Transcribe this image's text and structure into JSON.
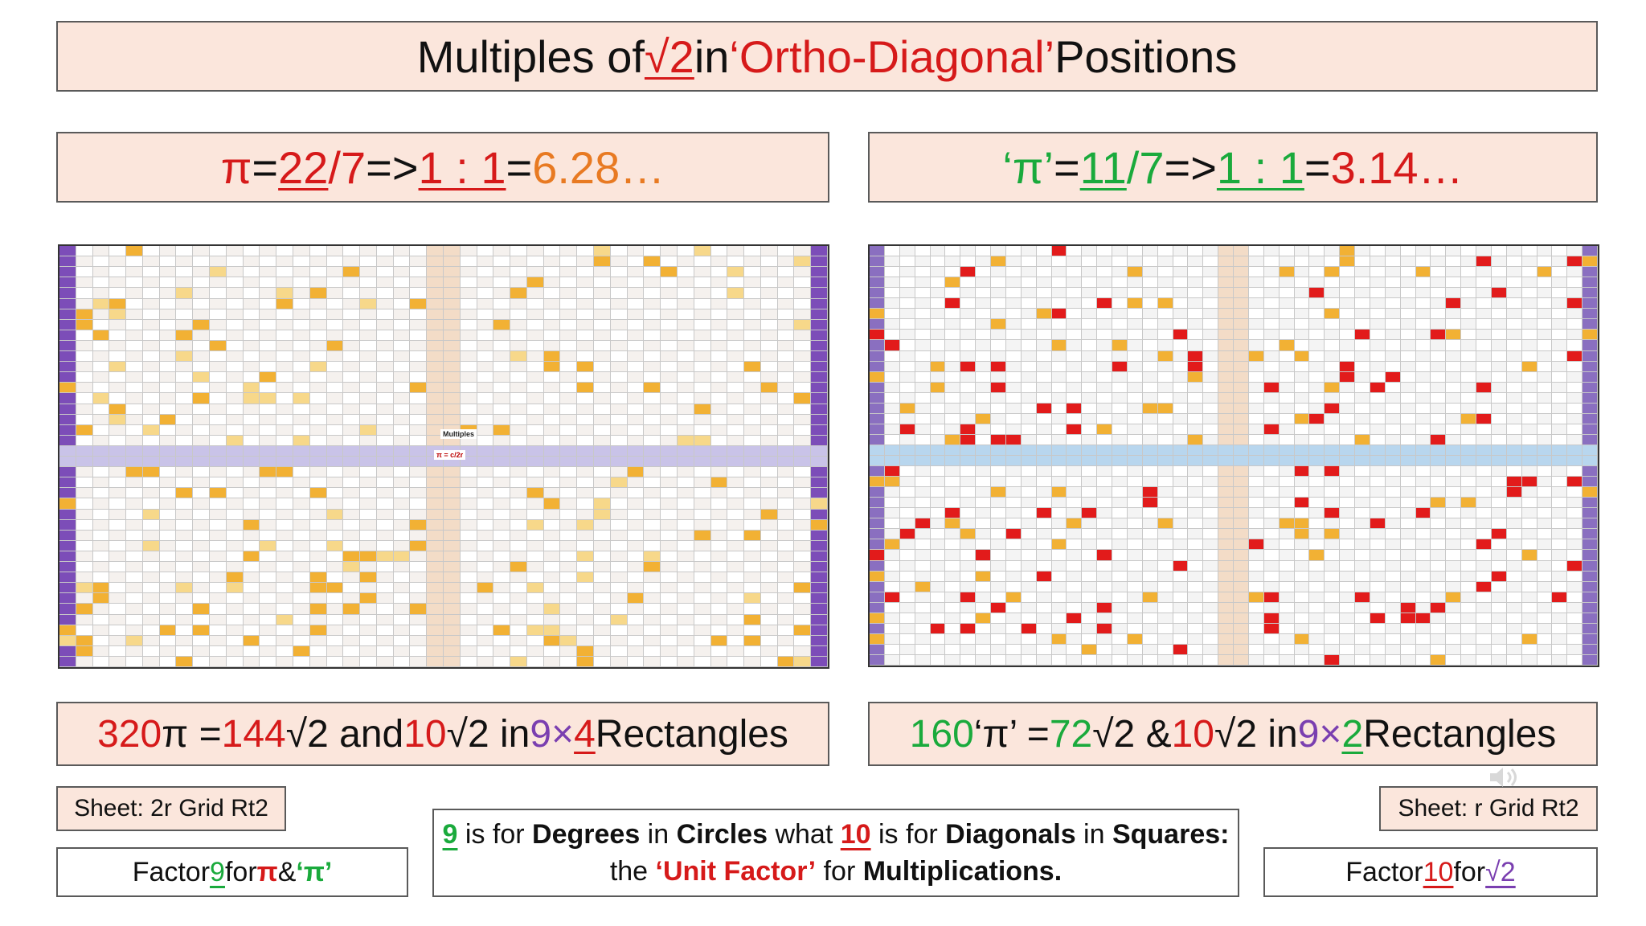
{
  "title": {
    "pre": "Multiples of ",
    "root": "√2",
    "mid": " in ",
    "ortho": "‘Ortho-Diagonal’",
    "post": " Positions"
  },
  "left_eq": {
    "pi": "π",
    "eq1": " = ",
    "num": "22",
    "slash": " / ",
    "den": "7",
    "arrow": " => ",
    "ratio": "1 : 1",
    "eq2": " = ",
    "value": "6.28…"
  },
  "right_eq": {
    "pi": "‘π’",
    "eq1": " = ",
    "num": "11",
    "slash": " / ",
    "den": "7",
    "arrow": " => ",
    "ratio": "1 : 1",
    "eq2": " = ",
    "value": "3.14…"
  },
  "left_rect": {
    "a": "320",
    "b": " π = ",
    "c": "144",
    "d": " √2 and ",
    "e": "10",
    "f": " √2 in ",
    "g": "9",
    "h": " × ",
    "i": "4",
    "j": " Rectangles"
  },
  "right_rect": {
    "a": "160",
    "b": " ‘π’ = ",
    "c": "72",
    "d": " √2 & ",
    "e": "10",
    "f": " √2 in ",
    "g": "9",
    "h": " × ",
    "i": "2",
    "j": " Rectangles"
  },
  "sheet_left": "Sheet: 2r Grid Rt2",
  "sheet_right": "Sheet: r Grid Rt2",
  "factor_left": {
    "pre": "Factor ",
    "num": "9",
    "mid": " for ",
    "pi": "π",
    "amp": " & ",
    "pi2": "‘π’"
  },
  "factor_right": {
    "pre": "Factor ",
    "num": "10",
    "mid": " for ",
    "root": "√2"
  },
  "unit_box": {
    "line1": {
      "n9": "9",
      "t1": " is for ",
      "deg": "Degrees",
      "t2": " in ",
      "circ": "Circles",
      "t3": " what ",
      "n10": "10",
      "t4": " is for ",
      "diag": "Diagonals",
      "t5": " in ",
      "sq": "Squares:"
    },
    "line2": {
      "t1": "the ",
      "uf": "‘Unit Factor’",
      "t2": " for ",
      "mult": "Multiplications."
    }
  },
  "grid_left_label": "π = c/2r",
  "grid_left_multiples": "Multiples",
  "colors": {
    "red": "#d61a1a",
    "orange": "#e87a22",
    "green": "#1aaa3c",
    "purple": "#7a3fb0",
    "panel": "#fbe6dc"
  },
  "icons": {
    "speaker": "speaker-icon"
  }
}
